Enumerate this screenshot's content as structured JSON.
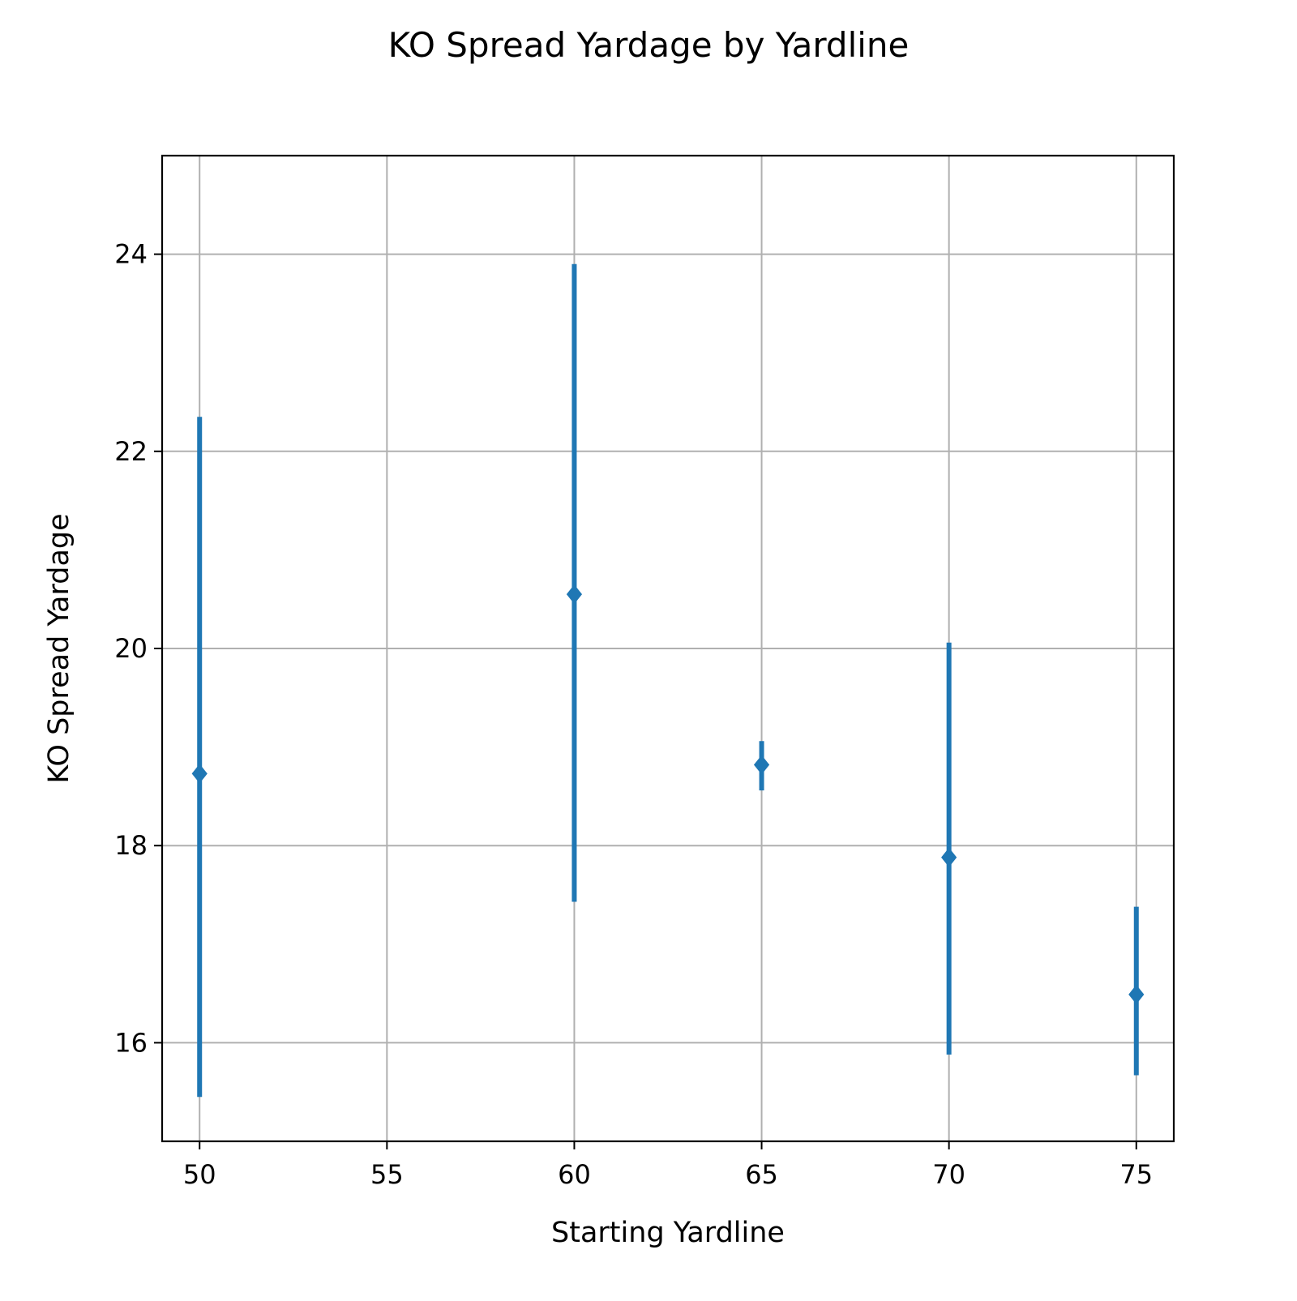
{
  "chart_data": {
    "type": "scatter",
    "title": "KO Spread Yardage by Yardline",
    "xlabel": "Starting Yardline",
    "ylabel": "KO Spread Yardage",
    "xlim": [
      49,
      76
    ],
    "ylim": [
      15,
      25
    ],
    "xticks": [
      50,
      55,
      60,
      65,
      70,
      75
    ],
    "yticks": [
      16,
      18,
      20,
      22,
      24
    ],
    "grid": true,
    "marker": "diamond",
    "color": "#1f77b4",
    "points": [
      {
        "x": 50,
        "y": 18.73,
        "yerr_low": 15.45,
        "yerr_high": 22.35
      },
      {
        "x": 60,
        "y": 20.55,
        "yerr_low": 17.43,
        "yerr_high": 23.9
      },
      {
        "x": 65,
        "y": 18.82,
        "yerr_low": 18.56,
        "yerr_high": 19.06
      },
      {
        "x": 70,
        "y": 17.88,
        "yerr_low": 15.88,
        "yerr_high": 20.06
      },
      {
        "x": 75,
        "y": 16.49,
        "yerr_low": 15.67,
        "yerr_high": 17.38
      }
    ]
  }
}
